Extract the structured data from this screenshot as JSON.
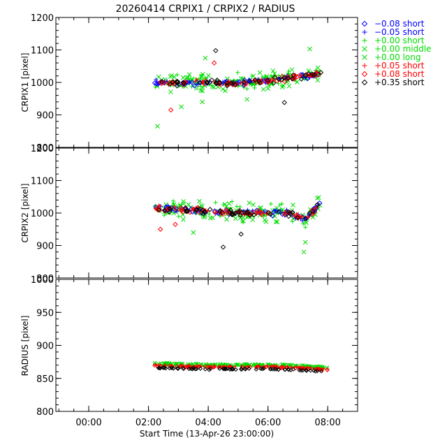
{
  "title": "20260414 CRPIX1 / CRPIX2 / RADIUS",
  "xlabel": "Start Time (13-Apr-26 23:00:00)",
  "x_ticks": [
    "00:00",
    "02:00",
    "04:00",
    "06:00",
    "08:00"
  ],
  "x_tick_hours": [
    1,
    3,
    5,
    7,
    9
  ],
  "x_range_hours": [
    -0.1,
    10.0
  ],
  "legend": [
    {
      "label": "−0.08 short",
      "marker": "diamond",
      "color": "#0000ff"
    },
    {
      "label": "−0.05 short",
      "marker": "plus",
      "color": "#0000ff"
    },
    {
      "label": "+0.00 short",
      "marker": "plus",
      "color": "#00dd00"
    },
    {
      "label": "+0.00 middle",
      "marker": "cross",
      "color": "#00dd00"
    },
    {
      "label": "+0.00 long",
      "marker": "cross",
      "color": "#00dd00"
    },
    {
      "label": "+0.05 short",
      "marker": "plus",
      "color": "#ff0000"
    },
    {
      "label": "+0.08 short",
      "marker": "diamond",
      "color": "#ff0000"
    },
    {
      "label": "+0.35 short",
      "marker": "diamond",
      "color": "#000000"
    }
  ],
  "chart_data": [
    {
      "type": "scatter",
      "ylabel": "CRPIX1 [pixel]",
      "ylim": [
        800,
        1200
      ],
      "y_ticks": [
        800,
        900,
        1000,
        1100,
        1200
      ],
      "y_tick_labels": [
        "800",
        "900",
        "1000",
        "1100",
        "1200"
      ],
      "x_start_hours": 3.2,
      "x_end_hours": 8.8,
      "baseline": [
        [
          3.2,
          1002
        ],
        [
          4.0,
          998
        ],
        [
          5.0,
          1000
        ],
        [
          5.5,
          998
        ],
        [
          6.0,
          1000
        ],
        [
          7.0,
          1005
        ],
        [
          7.5,
          1012
        ],
        [
          8.0,
          1018
        ],
        [
          8.5,
          1022
        ],
        [
          8.8,
          1025
        ]
      ],
      "spread_main": 12,
      "spread_green": 38,
      "outliers": [
        [
          3.3,
          865
        ],
        [
          4.9,
          1075
        ],
        [
          5.25,
          1098
        ],
        [
          5.2,
          1060
        ],
        [
          8.4,
          1103
        ],
        [
          4.8,
          940
        ],
        [
          7.55,
          938
        ],
        [
          3.75,
          915
        ],
        [
          6.3,
          948
        ],
        [
          4.1,
          925
        ]
      ],
      "series": [
        {
          "name": "−0.08 short",
          "values": "small scatter about baseline, approx 990–1030"
        },
        {
          "name": "+0.00 long",
          "values": "wide scatter, approx 865–1105"
        },
        {
          "name": "+0.35 short",
          "values": "close to baseline, approx 915–1100"
        }
      ]
    },
    {
      "type": "scatter",
      "ylabel": "CRPIX2 [pixel]",
      "ylim": [
        800,
        1200
      ],
      "y_ticks": [
        800,
        900,
        1000,
        1100,
        1200
      ],
      "y_tick_labels": [
        "800",
        "900",
        "1000",
        "1100",
        "1200"
      ],
      "x_start_hours": 3.2,
      "x_end_hours": 8.8,
      "baseline": [
        [
          3.2,
          1015
        ],
        [
          4.0,
          1010
        ],
        [
          5.0,
          1005
        ],
        [
          6.0,
          1000
        ],
        [
          7.0,
          1000
        ],
        [
          7.5,
          1002
        ],
        [
          7.8,
          995
        ],
        [
          8.2,
          982
        ],
        [
          8.5,
          1000
        ],
        [
          8.8,
          1045
        ]
      ],
      "spread_main": 14,
      "spread_green": 40,
      "outliers": [
        [
          8.2,
          880
        ],
        [
          8.25,
          910
        ],
        [
          5.5,
          895
        ],
        [
          3.4,
          950
        ],
        [
          4.5,
          940
        ],
        [
          8.7,
          1048
        ],
        [
          6.1,
          935
        ],
        [
          3.9,
          965
        ]
      ],
      "series": [
        {
          "name": "−0.08 short",
          "values": "small scatter about baseline, approx 960–1040"
        },
        {
          "name": "+0.00 long",
          "values": "wide scatter, approx 880–1050"
        },
        {
          "name": "+0.35 short",
          "values": "close to baseline, approx 880–1050"
        }
      ]
    },
    {
      "type": "scatter",
      "ylabel": "RADIUS [pixel]",
      "ylim": [
        800,
        1000
      ],
      "y_ticks": [
        800,
        850,
        900,
        950,
        1000
      ],
      "y_tick_labels": [
        "800",
        "850",
        "900",
        "950",
        "1000"
      ],
      "x_start_hours": 3.2,
      "x_end_hours": 9.0,
      "baseline": [
        [
          3.2,
          868
        ],
        [
          5.0,
          866
        ],
        [
          6.0,
          866
        ],
        [
          7.0,
          866
        ],
        [
          8.0,
          865
        ],
        [
          9.0,
          862
        ]
      ],
      "band_offsets": [
        {
          "series": "+0.00 long",
          "offset": 5
        },
        {
          "series": "+0.05 short",
          "offset": 2
        },
        {
          "series": "+0.35 short",
          "offset": -2
        }
      ],
      "series": [
        {
          "name": "+0.00 long",
          "values": "approx 866–876"
        },
        {
          "name": "+0.35 short",
          "values": "approx 860–866"
        }
      ]
    }
  ]
}
